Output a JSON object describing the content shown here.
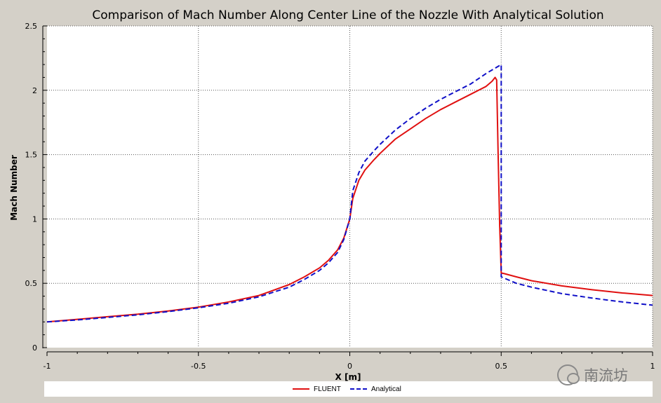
{
  "chart_data": {
    "type": "line",
    "title": "Comparison of Mach Number Along Center Line of the Nozzle With Analytical Solution",
    "xlabel": "X [m]",
    "ylabel": "Mach Number",
    "xlim": [
      -1,
      1
    ],
    "ylim": [
      0,
      2.5
    ],
    "xticks": [
      -1,
      -0.5,
      0,
      0.5,
      1
    ],
    "xtick_labels": [
      "-1",
      "-0.5",
      "0",
      "0.5",
      "1"
    ],
    "yticks": [
      0,
      0.5,
      1,
      1.5,
      2,
      2.5
    ],
    "ytick_labels": [
      "0",
      "0.5",
      "1",
      "1.5",
      "2",
      "2.5"
    ],
    "grid": true,
    "legend_position": "bottom",
    "series": [
      {
        "name": "FLUENT",
        "color": "#e01010",
        "style": "solid",
        "x": [
          -1,
          -0.9,
          -0.8,
          -0.7,
          -0.6,
          -0.5,
          -0.4,
          -0.3,
          -0.2,
          -0.15,
          -0.1,
          -0.07,
          -0.04,
          -0.02,
          0,
          0.01,
          0.03,
          0.05,
          0.08,
          0.1,
          0.15,
          0.2,
          0.25,
          0.3,
          0.35,
          0.4,
          0.45,
          0.47,
          0.48,
          0.485,
          0.49,
          0.495,
          0.5,
          0.51,
          0.55,
          0.6,
          0.7,
          0.8,
          0.9,
          1
        ],
        "y": [
          0.2,
          0.22,
          0.24,
          0.26,
          0.285,
          0.315,
          0.355,
          0.405,
          0.49,
          0.55,
          0.62,
          0.68,
          0.76,
          0.85,
          1.0,
          1.16,
          1.3,
          1.38,
          1.46,
          1.51,
          1.62,
          1.7,
          1.78,
          1.85,
          1.91,
          1.97,
          2.03,
          2.07,
          2.1,
          2.08,
          1.5,
          0.95,
          0.58,
          0.575,
          0.55,
          0.52,
          0.48,
          0.45,
          0.425,
          0.405
        ]
      },
      {
        "name": "Analytical",
        "color": "#1010c8",
        "style": "dashed",
        "x": [
          -1,
          -0.9,
          -0.8,
          -0.7,
          -0.6,
          -0.5,
          -0.4,
          -0.3,
          -0.2,
          -0.15,
          -0.1,
          -0.07,
          -0.04,
          -0.02,
          0,
          0.01,
          0.03,
          0.05,
          0.08,
          0.1,
          0.15,
          0.2,
          0.25,
          0.3,
          0.35,
          0.4,
          0.45,
          0.5,
          0.5,
          0.55,
          0.6,
          0.7,
          0.8,
          0.9,
          1
        ],
        "y": [
          0.2,
          0.215,
          0.235,
          0.255,
          0.28,
          0.31,
          0.345,
          0.395,
          0.47,
          0.53,
          0.6,
          0.66,
          0.74,
          0.84,
          1.0,
          1.22,
          1.36,
          1.45,
          1.53,
          1.58,
          1.69,
          1.78,
          1.86,
          1.93,
          1.99,
          2.05,
          2.13,
          2.2,
          0.55,
          0.5,
          0.47,
          0.42,
          0.385,
          0.355,
          0.33
        ]
      }
    ]
  },
  "watermark": {
    "text": "南流坊",
    "icon": "wechat-icon"
  }
}
